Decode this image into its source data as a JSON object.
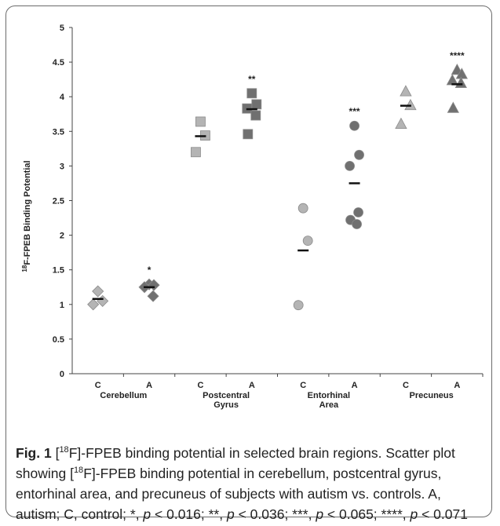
{
  "chart_data": {
    "type": "scatter",
    "ylabel_pre": "18",
    "ylabel_post": "F-FPEB Binding Potential",
    "ylim": [
      0,
      5
    ],
    "yticks": [
      "0",
      "0.5",
      "1",
      "1.5",
      "2",
      "2.5",
      "3",
      "3.5",
      "4",
      "4.5",
      "5"
    ],
    "grid": false,
    "groups": [
      {
        "region": "Cerebellum",
        "region_line2": "",
        "marker": "diamond",
        "conditions": [
          {
            "label": "C",
            "values": [
              1.19,
              1.05,
              1.0
            ],
            "mean": 1.08,
            "significance": ""
          },
          {
            "label": "A",
            "values": [
              1.29,
              1.28,
              1.25,
              1.12
            ],
            "mean": 1.25,
            "significance": "*"
          }
        ]
      },
      {
        "region": "Postcentral",
        "region_line2": "Gyrus",
        "marker": "square",
        "conditions": [
          {
            "label": "C",
            "values": [
              3.64,
              3.44,
              3.2
            ],
            "mean": 3.43,
            "significance": ""
          },
          {
            "label": "A",
            "values": [
              4.05,
              3.89,
              3.83,
              3.73,
              3.46
            ],
            "mean": 3.82,
            "significance": "**"
          }
        ]
      },
      {
        "region": "Entorhinal",
        "region_line2": "Area",
        "marker": "circle",
        "conditions": [
          {
            "label": "C",
            "values": [
              2.39,
              1.92,
              0.99
            ],
            "mean": 1.78,
            "significance": ""
          },
          {
            "label": "A",
            "values": [
              3.58,
              3.16,
              3.0,
              2.33,
              2.22,
              2.16
            ],
            "mean": 2.75,
            "significance": "***"
          }
        ]
      },
      {
        "region": "Precuneus",
        "region_line2": "",
        "marker": "triangle",
        "conditions": [
          {
            "label": "C",
            "values": [
              4.08,
              3.88,
              3.61
            ],
            "mean": 3.87,
            "significance": ""
          },
          {
            "label": "A",
            "values": [
              4.39,
              4.33,
              4.24,
              4.2,
              3.84
            ],
            "mean": 4.18,
            "significance": "****"
          }
        ]
      }
    ],
    "colors": {
      "control_marker": "#b4b4b4",
      "autism_marker": "#707070",
      "marker_edge": "#8a8a8a",
      "mean_bar": "#111111"
    }
  },
  "caption": {
    "fig_label": "Fig. 1",
    "p1": " [",
    "sup1": "18",
    "p2": "F]-FPEB binding potential in selected brain regions. Scatter plot showing [",
    "sup2": "18",
    "p3": "F]-FPEB binding potential in cerebellum, postcentral gyrus, entorhinal area, and precuneus of subjects with autism vs. controls. A, autism; C, control; *, ",
    "pv1": "p",
    "t1": " < 0.016; **, ",
    "pv2": "p",
    "t2": " < 0.036; ***, ",
    "pv3": "p",
    "t3": " < 0.065; ****, ",
    "pv4": "p",
    "t4": " < 0.071"
  }
}
